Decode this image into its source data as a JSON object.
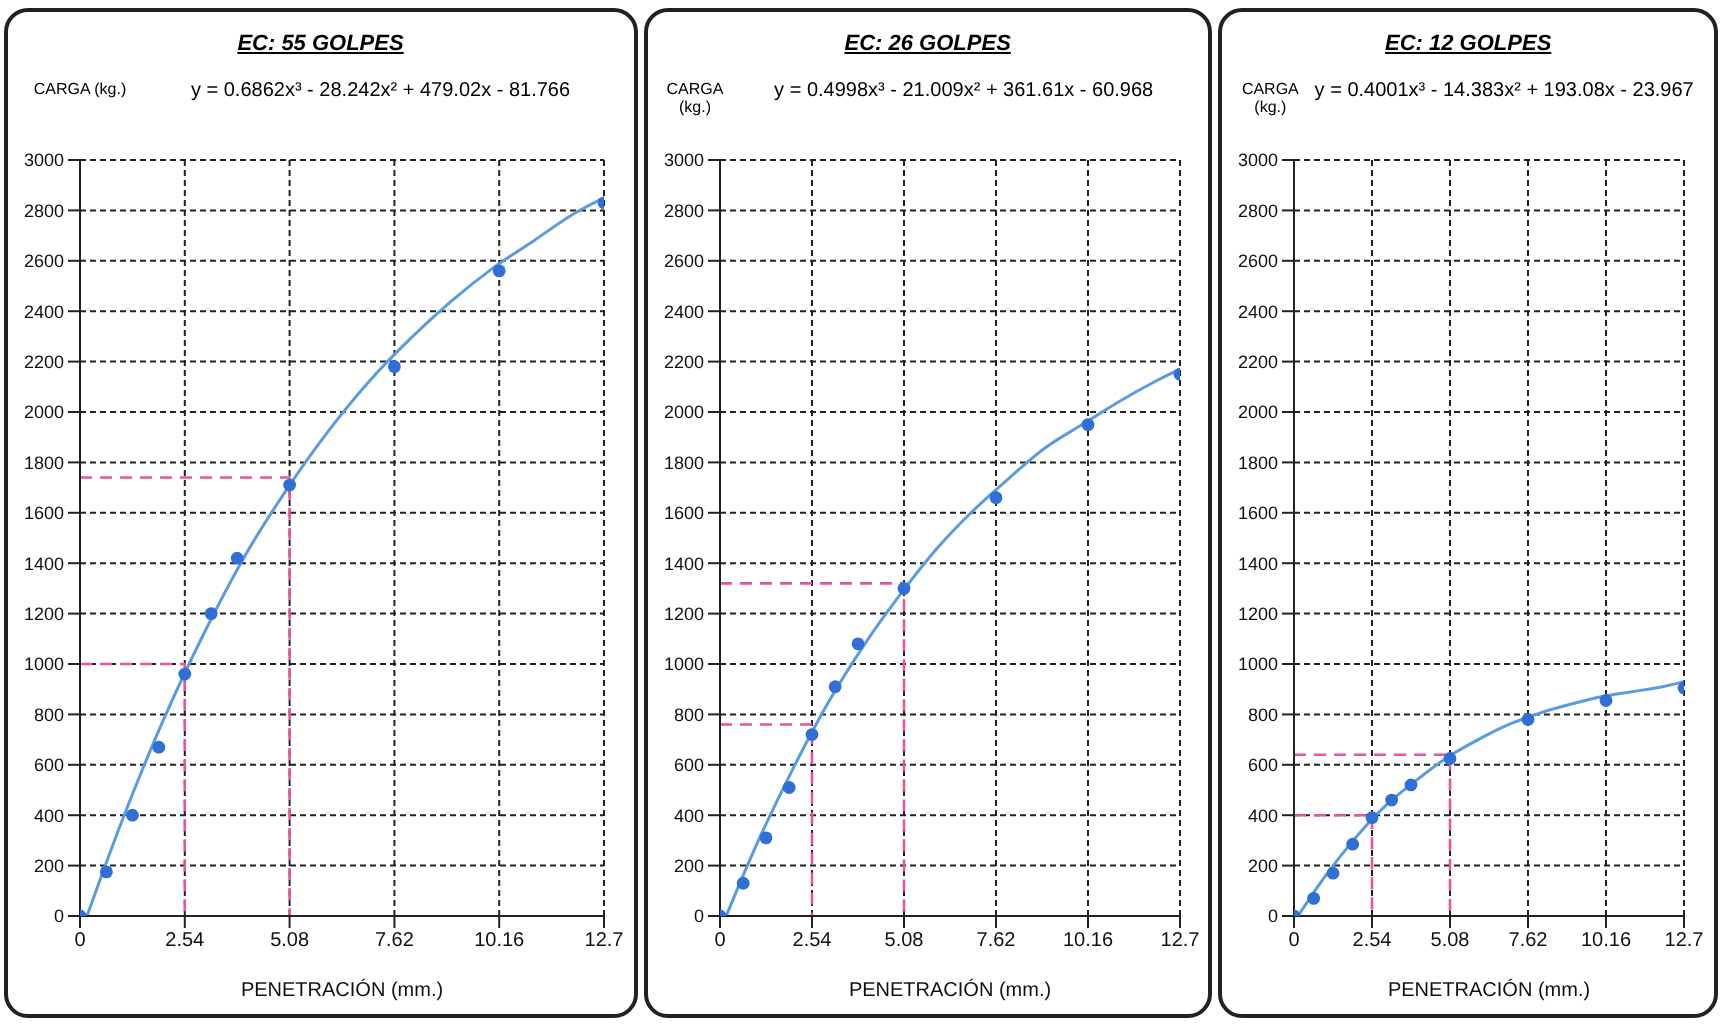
{
  "chart_data": [
    {
      "type": "scatter",
      "title": "EC: 55 GOLPES",
      "ylabel": "CARGA (kg.)",
      "xlabel": "PENETRACIÓN (mm.)",
      "annotations": [
        "y = 0.6862x³ - 28.242x² + 479.02x - 81.766"
      ],
      "xlim": [
        0,
        12.7
      ],
      "xticks": [
        0,
        2.54,
        5.08,
        7.62,
        10.16,
        12.7
      ],
      "ylim": [
        0,
        3000
      ],
      "yticks": [
        0,
        200,
        400,
        600,
        800,
        1000,
        1200,
        1400,
        1600,
        1800,
        2000,
        2200,
        2400,
        2600,
        2800,
        3000
      ],
      "grid": true,
      "series": [
        {
          "marker": "circle",
          "color": "#2f6fd6",
          "x": [
            0,
            0.64,
            1.27,
            1.91,
            2.54,
            3.18,
            3.81,
            5.08,
            7.62,
            10.16,
            12.7
          ],
          "values": [
            0,
            175,
            400,
            670,
            960,
            1200,
            1420,
            1710,
            2180,
            2560,
            2830
          ]
        },
        {
          "type": "line",
          "marker": "none",
          "line_style": "solid",
          "color": "#5b9be0",
          "x": [
            0.17,
            1,
            2,
            3,
            4,
            5,
            6,
            7,
            8,
            9,
            10,
            11,
            12,
            12.7
          ],
          "values": [
            0,
            370,
            770,
            1120,
            1430,
            1690,
            1920,
            2120,
            2290,
            2440,
            2570,
            2680,
            2790,
            2850
          ]
        },
        {
          "type": "line",
          "marker": "none",
          "line_style": "dashed",
          "color": "#e8559e",
          "x": [
            0,
            2.54,
            2.54
          ],
          "values": [
            1000,
            1000,
            0
          ]
        },
        {
          "type": "line",
          "marker": "none",
          "line_style": "dashed",
          "color": "#e8559e",
          "x": [
            0,
            5.08,
            5.08
          ],
          "values": [
            1740,
            1740,
            0
          ]
        }
      ]
    },
    {
      "type": "scatter",
      "title": "EC: 26 GOLPES",
      "ylabel": "CARGA (kg.)",
      "xlabel": "PENETRACIÓN (mm.)",
      "annotations": [
        "y = 0.4998x³ - 21.009x² + 361.61x - 60.968"
      ],
      "xlim": [
        0,
        12.7
      ],
      "xticks": [
        0,
        2.54,
        5.08,
        7.62,
        10.16,
        12.7
      ],
      "ylim": [
        0,
        3000
      ],
      "yticks": [
        0,
        200,
        400,
        600,
        800,
        1000,
        1200,
        1400,
        1600,
        1800,
        2000,
        2200,
        2400,
        2600,
        2800,
        3000
      ],
      "grid": true,
      "series": [
        {
          "marker": "circle",
          "color": "#2f6fd6",
          "x": [
            0,
            0.64,
            1.27,
            1.91,
            2.54,
            3.18,
            3.81,
            5.08,
            7.62,
            10.16,
            12.7
          ],
          "values": [
            0,
            130,
            310,
            510,
            720,
            910,
            1080,
            1300,
            1660,
            1950,
            2150
          ]
        },
        {
          "type": "line",
          "marker": "none",
          "line_style": "solid",
          "color": "#5b9be0",
          "x": [
            0.17,
            1,
            2,
            3,
            4,
            5,
            6,
            7,
            8,
            9,
            10,
            11,
            12,
            12.7
          ],
          "values": [
            0,
            280,
            580,
            850,
            1080,
            1280,
            1460,
            1610,
            1740,
            1860,
            1950,
            2040,
            2120,
            2170
          ]
        },
        {
          "type": "line",
          "marker": "none",
          "line_style": "dashed",
          "color": "#e8559e",
          "x": [
            0,
            2.54,
            2.54
          ],
          "values": [
            760,
            760,
            0
          ]
        },
        {
          "type": "line",
          "marker": "none",
          "line_style": "dashed",
          "color": "#e8559e",
          "x": [
            0,
            5.08,
            5.08
          ],
          "values": [
            1320,
            1320,
            0
          ]
        }
      ]
    },
    {
      "type": "scatter",
      "title": "EC: 12 GOLPES",
      "ylabel": "CARGA (kg.)",
      "xlabel": "PENETRACIÓN (mm.)",
      "annotations": [
        "y = 0.4001x³ - 14.383x² + 193.08x - 23.967"
      ],
      "xlim": [
        0,
        12.7
      ],
      "xticks": [
        0,
        2.54,
        5.08,
        7.62,
        10.16,
        12.7
      ],
      "ylim": [
        0,
        3000
      ],
      "yticks": [
        0,
        200,
        400,
        600,
        800,
        1000,
        1200,
        1400,
        1600,
        1800,
        2000,
        2200,
        2400,
        2600,
        2800,
        3000
      ],
      "grid": true,
      "series": [
        {
          "marker": "circle",
          "color": "#2f6fd6",
          "x": [
            0,
            0.64,
            1.27,
            1.91,
            2.54,
            3.18,
            3.81,
            5.08,
            7.62,
            10.16,
            12.7
          ],
          "values": [
            0,
            70,
            170,
            285,
            390,
            460,
            520,
            625,
            780,
            855,
            905
          ]
        },
        {
          "type": "line",
          "marker": "none",
          "line_style": "solid",
          "color": "#5b9be0",
          "x": [
            0.13,
            1,
            2,
            3,
            4,
            5,
            6,
            7,
            8,
            9,
            10,
            11,
            12,
            12.7
          ],
          "values": [
            0,
            155,
            310,
            440,
            540,
            630,
            700,
            760,
            805,
            840,
            870,
            890,
            910,
            930
          ]
        },
        {
          "type": "line",
          "marker": "none",
          "line_style": "dashed",
          "color": "#e8559e",
          "x": [
            0,
            2.54,
            2.54
          ],
          "values": [
            400,
            400,
            0
          ]
        },
        {
          "type": "line",
          "marker": "none",
          "line_style": "dashed",
          "color": "#e8559e",
          "x": [
            0,
            5.08,
            5.08
          ],
          "values": [
            640,
            640,
            0
          ]
        }
      ]
    }
  ]
}
